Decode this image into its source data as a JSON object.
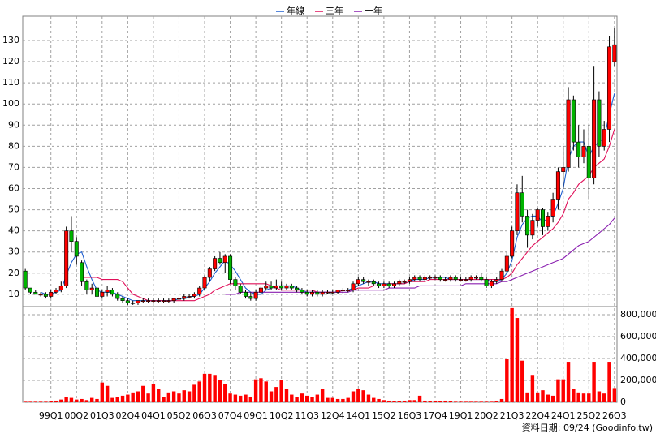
{
  "chart_data": {
    "type": "candlestick",
    "categories": [
      null,
      null,
      null,
      null,
      null,
      "99Q1",
      null,
      null,
      null,
      null,
      "00Q2",
      null,
      null,
      null,
      null,
      "01Q3",
      null,
      null,
      null,
      null,
      "02Q4",
      null,
      null,
      null,
      null,
      "04Q1",
      null,
      null,
      null,
      null,
      "05Q2",
      null,
      null,
      null,
      null,
      "06Q3",
      null,
      null,
      null,
      null,
      "07Q4",
      null,
      null,
      null,
      null,
      "09Q1",
      null,
      null,
      null,
      null,
      "10Q2",
      null,
      null,
      null,
      null,
      "11Q3",
      null,
      null,
      null,
      null,
      "12Q4",
      null,
      null,
      null,
      null,
      "14Q1",
      null,
      null,
      null,
      null,
      "15Q2",
      null,
      null,
      null,
      null,
      "16Q3",
      null,
      null,
      null,
      null,
      "17Q4",
      null,
      null,
      null,
      null,
      "19Q1",
      null,
      null,
      null,
      null,
      "20Q2",
      null,
      null,
      null,
      null,
      "21Q3",
      null,
      null,
      null,
      null,
      "22Q4",
      null,
      null,
      null,
      null,
      "24Q1",
      null,
      null,
      null,
      null,
      "25Q2",
      null,
      null,
      null,
      null,
      "26Q3"
    ],
    "open": [
      21,
      13,
      11,
      10,
      10,
      9,
      11,
      12,
      14,
      40,
      35,
      25,
      16,
      12,
      13,
      9,
      11,
      12,
      10,
      8,
      7,
      6,
      6,
      7,
      7,
      7,
      7,
      7,
      7,
      7,
      8,
      8,
      9,
      9,
      10,
      13,
      18,
      22,
      27,
      25,
      28,
      17,
      14,
      11,
      9,
      8,
      11,
      13,
      14,
      13,
      14,
      13,
      14,
      13,
      12,
      11,
      10,
      11,
      10,
      11,
      11,
      11,
      12,
      12,
      12,
      15,
      17,
      16,
      16,
      15,
      14,
      15,
      14,
      15,
      16,
      16,
      17,
      18,
      17,
      18,
      18,
      18,
      17,
      17,
      18,
      17,
      17,
      17,
      18,
      18,
      17,
      14,
      16,
      17,
      21,
      28,
      40,
      58,
      47,
      38,
      45,
      50,
      42,
      47,
      55,
      68,
      70,
      102,
      82,
      75,
      80,
      65,
      102,
      80,
      88,
      120
    ],
    "high": [
      22,
      13,
      12,
      11,
      11,
      12,
      13,
      16,
      42,
      47,
      37,
      26,
      17,
      15,
      14,
      12,
      14,
      13,
      11,
      9,
      8,
      7,
      7,
      8,
      8,
      8,
      8,
      8,
      8,
      8,
      9,
      10,
      10,
      11,
      14,
      19,
      23,
      28,
      30,
      29,
      29,
      18,
      15,
      12,
      11,
      12,
      14,
      16,
      16,
      17,
      16,
      15,
      15,
      14,
      13,
      12,
      12,
      12,
      12,
      12,
      12,
      12,
      13,
      13,
      16,
      18,
      18,
      17,
      17,
      16,
      16,
      16,
      16,
      17,
      17,
      18,
      19,
      19,
      19,
      19,
      19,
      19,
      18,
      19,
      19,
      18,
      18,
      19,
      19,
      20,
      18,
      17,
      18,
      22,
      30,
      42,
      62,
      66,
      50,
      48,
      51,
      51,
      49,
      58,
      70,
      80,
      108,
      104,
      90,
      88,
      90,
      118,
      106,
      92,
      132,
      136
    ],
    "low": [
      12,
      10,
      10,
      9,
      8,
      8,
      10,
      11,
      13,
      30,
      24,
      14,
      10,
      10,
      8,
      8,
      9,
      9,
      7,
      6,
      5,
      5,
      5,
      6,
      6,
      6,
      6,
      6,
      6,
      6,
      7,
      7,
      8,
      8,
      9,
      12,
      16,
      21,
      24,
      20,
      15,
      12,
      10,
      8,
      7,
      7,
      10,
      12,
      12,
      12,
      12,
      12,
      12,
      11,
      10,
      9,
      9,
      9,
      9,
      10,
      10,
      10,
      10,
      11,
      11,
      14,
      15,
      14,
      14,
      13,
      13,
      13,
      13,
      14,
      15,
      15,
      16,
      16,
      16,
      17,
      17,
      16,
      16,
      16,
      16,
      16,
      16,
      16,
      17,
      16,
      13,
      13,
      15,
      16,
      20,
      27,
      38,
      44,
      32,
      36,
      42,
      38,
      40,
      44,
      50,
      60,
      68,
      78,
      70,
      72,
      55,
      62,
      75,
      78,
      82,
      118
    ],
    "close": [
      13,
      11,
      10,
      10,
      9,
      11,
      12,
      14,
      40,
      35,
      28,
      16,
      12,
      13,
      9,
      11,
      12,
      10,
      8,
      7,
      6,
      6,
      7,
      7,
      7,
      7,
      7,
      7,
      7,
      8,
      8,
      9,
      9,
      10,
      13,
      18,
      22,
      27,
      25,
      28,
      17,
      14,
      11,
      9,
      8,
      11,
      13,
      14,
      13,
      14,
      13,
      14,
      13,
      12,
      11,
      10,
      11,
      10,
      11,
      11,
      11,
      12,
      12,
      12,
      15,
      17,
      16,
      16,
      15,
      14,
      15,
      14,
      15,
      16,
      16,
      17,
      18,
      17,
      18,
      18,
      18,
      17,
      17,
      18,
      17,
      17,
      17,
      18,
      18,
      17,
      14,
      16,
      17,
      21,
      28,
      40,
      58,
      47,
      38,
      45,
      50,
      42,
      47,
      55,
      68,
      70,
      102,
      82,
      75,
      80,
      65,
      102,
      80,
      88,
      127,
      128
    ],
    "up_color": "#ff0000",
    "down_color": "#00b400",
    "ylim": [
      4.2,
      141.5
    ],
    "yticks": [
      10,
      20,
      30,
      40,
      50,
      60,
      70,
      80,
      90,
      100,
      110,
      120,
      130
    ],
    "grid": true,
    "series": [
      {
        "name": "年線",
        "color": "#1f5fd0",
        "values": [
          null,
          null,
          null,
          11,
          10,
          10,
          11,
          12,
          19,
          25,
          29,
          30,
          23,
          17,
          12,
          11,
          11,
          11,
          10,
          9,
          8,
          7,
          7,
          7,
          7,
          7,
          7,
          7,
          7,
          7,
          8,
          8,
          9,
          9,
          10,
          13,
          16,
          20,
          23,
          26,
          24,
          21,
          17,
          13,
          11,
          10,
          10,
          12,
          13,
          14,
          14,
          14,
          14,
          13,
          12,
          11,
          11,
          11,
          11,
          11,
          11,
          11,
          12,
          12,
          13,
          14,
          15,
          16,
          16,
          15,
          15,
          15,
          15,
          15,
          15,
          16,
          17,
          17,
          17,
          18,
          18,
          18,
          18,
          17,
          17,
          17,
          17,
          17,
          17,
          17,
          17,
          16,
          16,
          17,
          20,
          26,
          37,
          43,
          46,
          47,
          47,
          44,
          46,
          47,
          53,
          60,
          74,
          80,
          82,
          82,
          75,
          80,
          82,
          84,
          95,
          105
        ]
      },
      {
        "name": "三年",
        "color": "#e0105a",
        "values": [
          null,
          null,
          null,
          null,
          null,
          null,
          null,
          null,
          null,
          null,
          null,
          18,
          18,
          18,
          18,
          17,
          17,
          17,
          17,
          16,
          13,
          10,
          9,
          8,
          7,
          7,
          7,
          7,
          7,
          7,
          7,
          7,
          7,
          7,
          8,
          9,
          10,
          12,
          13,
          14,
          15,
          15,
          15,
          15,
          15,
          15,
          15,
          15,
          14,
          13,
          12,
          12,
          12,
          12,
          12,
          12,
          12,
          11,
          11,
          11,
          11,
          11,
          12,
          12,
          12,
          13,
          13,
          13,
          14,
          14,
          14,
          15,
          15,
          15,
          15,
          16,
          16,
          16,
          16,
          17,
          17,
          17,
          17,
          17,
          17,
          17,
          17,
          17,
          17,
          17,
          17,
          17,
          17,
          17,
          18,
          20,
          24,
          27,
          30,
          33,
          35,
          37,
          39,
          41,
          44,
          48,
          55,
          58,
          62,
          64,
          66,
          70,
          72,
          74,
          80,
          88
        ]
      },
      {
        "name": "十年",
        "color": "#8a1fb0",
        "values": [
          null,
          null,
          null,
          null,
          null,
          null,
          null,
          null,
          null,
          null,
          null,
          null,
          null,
          null,
          null,
          null,
          null,
          null,
          null,
          null,
          null,
          null,
          null,
          null,
          null,
          null,
          null,
          null,
          null,
          null,
          null,
          null,
          null,
          null,
          null,
          null,
          null,
          null,
          null,
          10,
          10,
          10,
          11,
          11,
          11,
          11,
          11,
          11,
          11,
          11,
          11,
          11,
          11,
          11,
          11,
          11,
          11,
          11,
          11,
          11,
          11,
          11,
          11,
          11,
          12,
          12,
          12,
          12,
          12,
          12,
          12,
          13,
          13,
          13,
          13,
          13,
          13,
          14,
          14,
          14,
          14,
          14,
          14,
          14,
          14,
          14,
          15,
          15,
          15,
          15,
          15,
          15,
          15,
          16,
          16,
          17,
          18,
          19,
          20,
          21,
          22,
          23,
          24,
          25,
          26,
          27,
          29,
          31,
          33,
          34,
          35,
          37,
          39,
          41,
          43,
          46
        ]
      }
    ],
    "volume": {
      "color": "#ff0000",
      "ylim": [
        0,
        874000
      ],
      "yticks": [
        0,
        {
          "value": 200000,
          "label": "200,000"
        },
        {
          "value": 400000,
          "label": "400,000"
        },
        {
          "value": 600000,
          "label": "600,000"
        },
        {
          "value": 800000,
          "label": "800,000"
        }
      ],
      "values": [
        5000,
        5000,
        5000,
        5000,
        5000,
        10000,
        15000,
        25000,
        50000,
        40000,
        25000,
        30000,
        20000,
        40000,
        30000,
        180000,
        150000,
        40000,
        50000,
        60000,
        70000,
        90000,
        100000,
        150000,
        80000,
        170000,
        120000,
        50000,
        90000,
        100000,
        80000,
        110000,
        100000,
        160000,
        190000,
        260000,
        260000,
        250000,
        200000,
        170000,
        80000,
        70000,
        60000,
        70000,
        50000,
        210000,
        220000,
        190000,
        100000,
        140000,
        200000,
        120000,
        70000,
        50000,
        80000,
        60000,
        50000,
        70000,
        120000,
        40000,
        40000,
        30000,
        30000,
        40000,
        100000,
        120000,
        110000,
        70000,
        40000,
        30000,
        20000,
        15000,
        10000,
        10000,
        15000,
        20000,
        20000,
        60000,
        15000,
        10000,
        15000,
        10000,
        15000,
        10000,
        5000,
        5000,
        5000,
        5000,
        5000,
        5000,
        5000,
        5000,
        10000,
        30000,
        400000,
        860000,
        770000,
        380000,
        90000,
        250000,
        90000,
        110000,
        70000,
        60000,
        210000,
        210000,
        370000,
        120000,
        90000,
        80000,
        80000,
        370000,
        100000,
        80000,
        370000,
        130000
      ]
    },
    "source": "資料日期: 09/24  (Goodinfo.tw)"
  }
}
